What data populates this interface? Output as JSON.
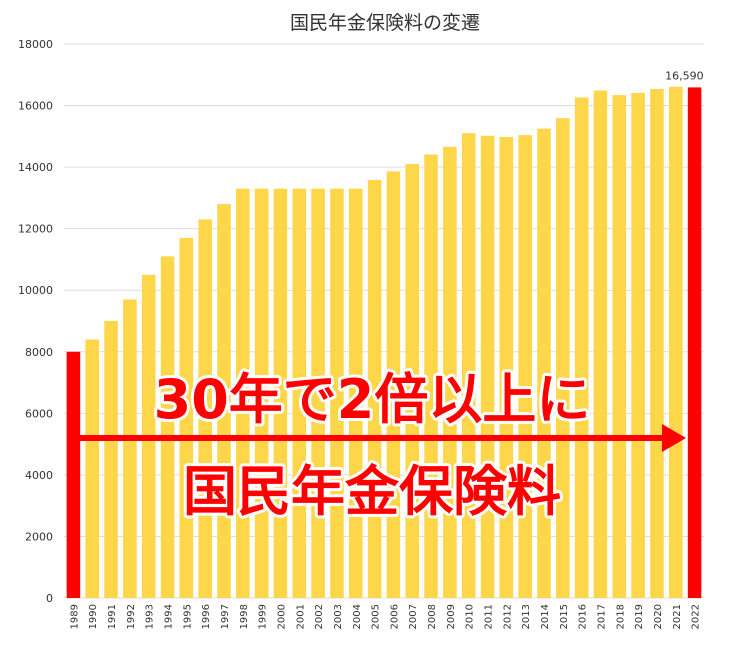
{
  "chart_data": {
    "type": "bar",
    "title": "国民年金保険料の変遷",
    "xlabel": "",
    "ylabel": "",
    "ylim": [
      0,
      18000
    ],
    "yticks": [
      0,
      2000,
      4000,
      6000,
      8000,
      10000,
      12000,
      14000,
      16000,
      18000
    ],
    "grid": true,
    "categories": [
      "1989",
      "1990",
      "1991",
      "1992",
      "1993",
      "1994",
      "1995",
      "1996",
      "1997",
      "1998",
      "1999",
      "2000",
      "2001",
      "2002",
      "2003",
      "2004",
      "2005",
      "2006",
      "2007",
      "2008",
      "2009",
      "2010",
      "2011",
      "2012",
      "2013",
      "2014",
      "2015",
      "2016",
      "2017",
      "2018",
      "2019",
      "2020",
      "2021",
      "2022"
    ],
    "values": [
      8000,
      8400,
      9000,
      9700,
      10500,
      11100,
      11700,
      12300,
      12800,
      13300,
      13300,
      13300,
      13300,
      13300,
      13300,
      13300,
      13580,
      13860,
      14100,
      14410,
      14660,
      15100,
      15020,
      14980,
      15040,
      15250,
      15590,
      16260,
      16490,
      16340,
      16410,
      16540,
      16610,
      16590
    ],
    "highlighted": [
      "1989",
      "2022"
    ],
    "data_labels": [
      {
        "category": "2022",
        "text": "16,590"
      }
    ],
    "colors": {
      "bar": "#fdd64a",
      "highlight": "#ff0000",
      "grid": "#dddddd"
    },
    "annotations": {
      "line1": "30年で2倍以上に",
      "line2": "国民年金保険料",
      "arrow_color": "#ff0000"
    }
  }
}
